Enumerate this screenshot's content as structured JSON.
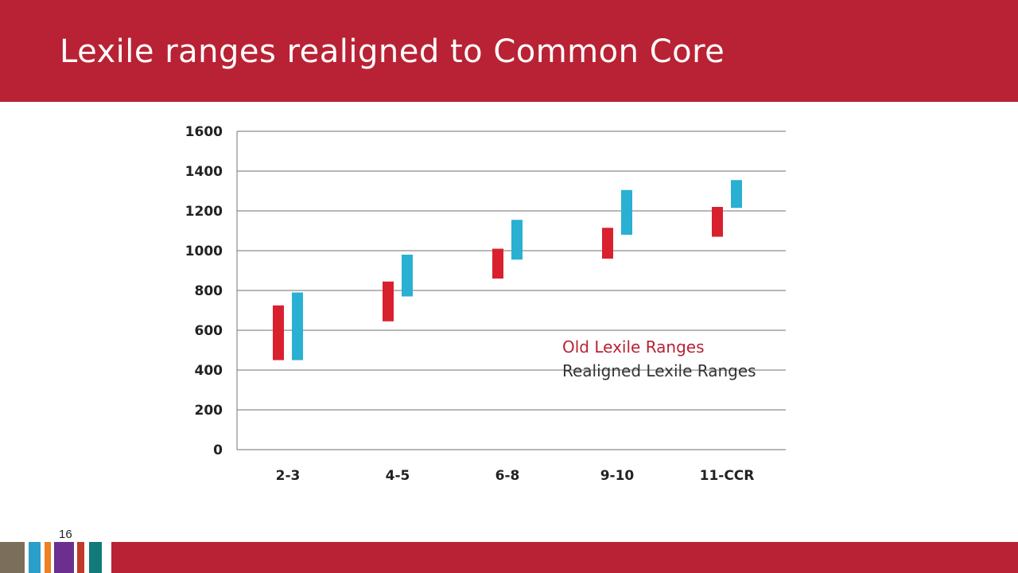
{
  "slide": {
    "title": "Lexile ranges realigned to Common Core",
    "page_number": "16"
  },
  "colors": {
    "header": "#b92234",
    "old": "#d9202f",
    "realigned": "#2ab0d2",
    "footer_strips": [
      "#7b6f5c",
      "#2a9fc9",
      "#ef7f22",
      "#6a2f8f",
      "#c0392b",
      "#127a78"
    ]
  },
  "chart_data": {
    "type": "bar",
    "subtype": "floating-range",
    "categories": [
      "2-3",
      "4-5",
      "6-8",
      "9-10",
      "11-CCR"
    ],
    "series": [
      {
        "name": "Old Lexile Ranges",
        "ranges": [
          [
            450,
            725
          ],
          [
            645,
            845
          ],
          [
            860,
            1010
          ],
          [
            960,
            1115
          ],
          [
            1070,
            1220
          ]
        ]
      },
      {
        "name": "Realigned Lexile Ranges",
        "ranges": [
          [
            450,
            790
          ],
          [
            770,
            980
          ],
          [
            955,
            1155
          ],
          [
            1080,
            1305
          ],
          [
            1215,
            1355
          ]
        ]
      }
    ],
    "ylim": [
      0,
      1600
    ],
    "yticks": [
      0,
      200,
      400,
      600,
      800,
      1000,
      1200,
      1400,
      1600
    ],
    "grid": true,
    "legend": "inside-right"
  }
}
